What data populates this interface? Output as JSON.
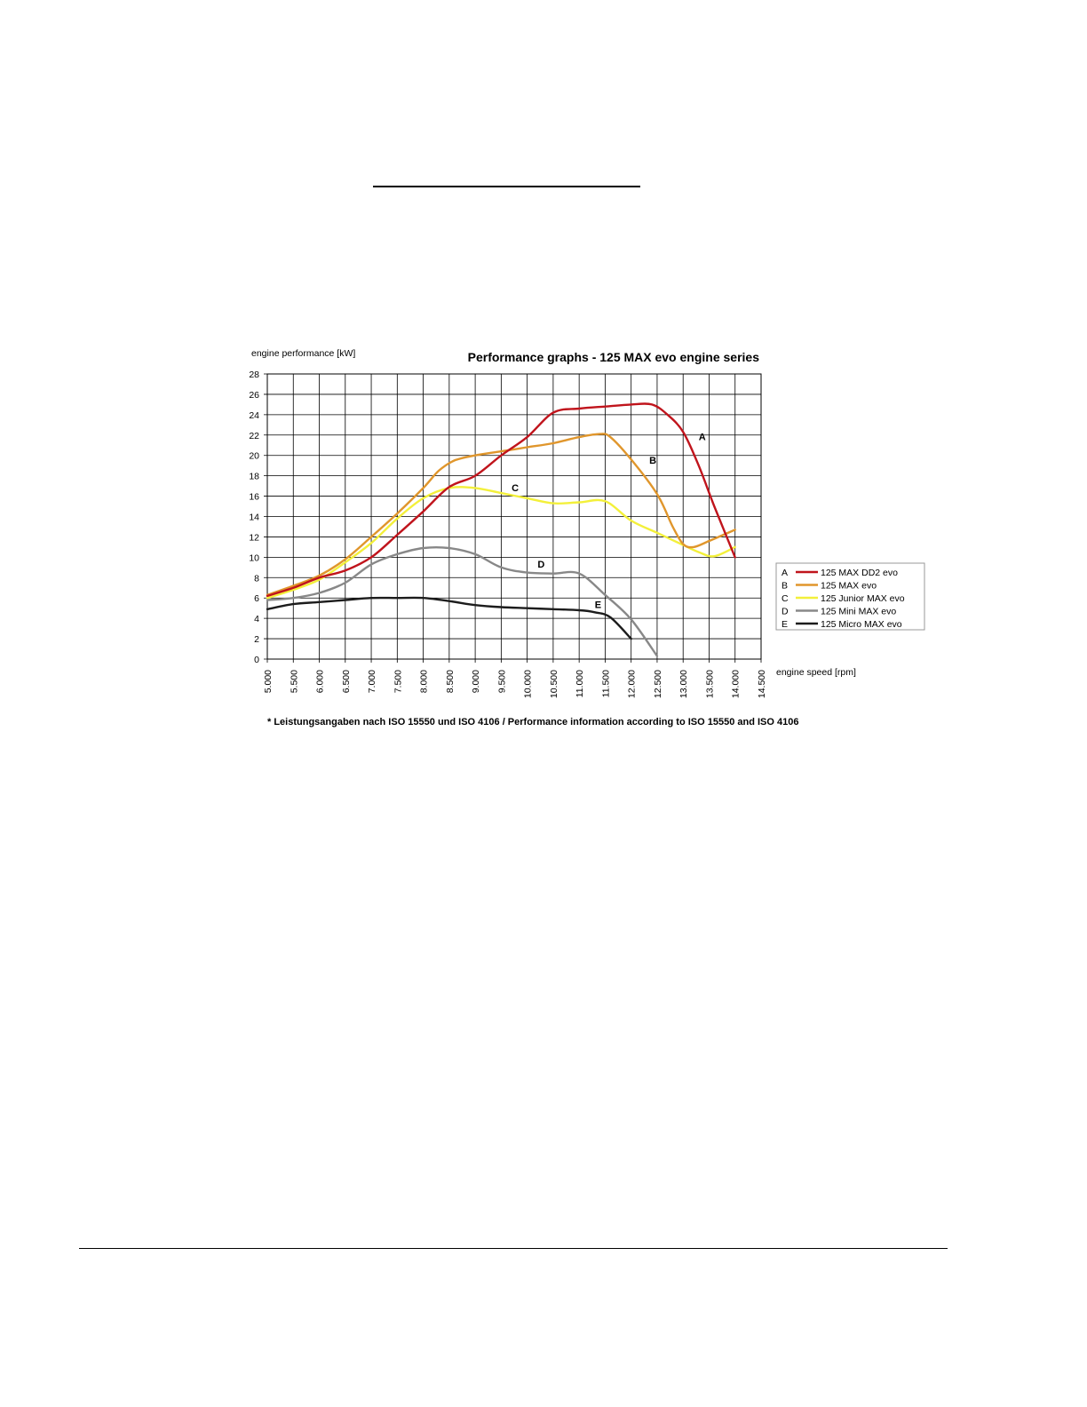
{
  "page": {
    "footnote": "* Leistungsangaben nach ISO 15550 und ISO 4106 / Performance information according to ISO 15550 and ISO 4106"
  },
  "chart_data": {
    "type": "line",
    "title": "Performance graphs - 125 MAX evo engine series",
    "ylabel": "engine performance [kW]",
    "xlabel": "engine speed [rpm]",
    "xlim": [
      5000,
      14500
    ],
    "ylim": [
      0,
      28
    ],
    "grid": true,
    "legend_position": "right",
    "x_ticks": [
      5000,
      5500,
      6000,
      6500,
      7000,
      7500,
      8000,
      8500,
      9000,
      9500,
      10000,
      10500,
      11000,
      11500,
      12000,
      12500,
      13000,
      13500,
      14000,
      14500
    ],
    "x_tick_labels": [
      "5.000",
      "5.500",
      "6.000",
      "6.500",
      "7.000",
      "7.500",
      "8.000",
      "8.500",
      "9.000",
      "9.500",
      "10.000",
      "10.500",
      "11.000",
      "11.500",
      "12.000",
      "12.500",
      "13.000",
      "13.500",
      "14.000",
      "14.500"
    ],
    "y_ticks": [
      0,
      2,
      4,
      6,
      8,
      10,
      12,
      14,
      16,
      18,
      20,
      22,
      24,
      26,
      28
    ],
    "y_tick_labels": [
      "0",
      "2",
      "4",
      "6",
      "8",
      "10",
      "12",
      "14",
      "16",
      "18",
      "20",
      "22",
      "24",
      "26",
      "28"
    ],
    "series": [
      {
        "letter": "A",
        "name": "125 MAX DD2 evo",
        "color": "#c0141c",
        "label_at": [
          13300,
          21.5
        ],
        "points": [
          [
            5000,
            6.2
          ],
          [
            5500,
            7.0
          ],
          [
            6000,
            8.0
          ],
          [
            6500,
            8.7
          ],
          [
            7000,
            10.0
          ],
          [
            7500,
            12.2
          ],
          [
            8000,
            14.5
          ],
          [
            8500,
            16.9
          ],
          [
            9000,
            18.0
          ],
          [
            9500,
            20.0
          ],
          [
            10000,
            21.8
          ],
          [
            10500,
            24.2
          ],
          [
            11000,
            24.6
          ],
          [
            11500,
            24.8
          ],
          [
            12000,
            25.0
          ],
          [
            12400,
            25.0
          ],
          [
            12700,
            24.0
          ],
          [
            13000,
            22.3
          ],
          [
            13300,
            19.0
          ],
          [
            13600,
            15.0
          ],
          [
            14000,
            10.0
          ]
        ]
      },
      {
        "letter": "B",
        "name": "125 MAX evo",
        "color": "#e0962c",
        "label_at": [
          12350,
          19.2
        ],
        "points": [
          [
            5000,
            6.3
          ],
          [
            5500,
            7.2
          ],
          [
            6000,
            8.2
          ],
          [
            6500,
            9.8
          ],
          [
            7000,
            12.0
          ],
          [
            7500,
            14.3
          ],
          [
            8000,
            16.8
          ],
          [
            8300,
            18.5
          ],
          [
            8600,
            19.5
          ],
          [
            9000,
            20.0
          ],
          [
            9500,
            20.4
          ],
          [
            10000,
            20.8
          ],
          [
            10500,
            21.2
          ],
          [
            11000,
            21.8
          ],
          [
            11400,
            22.1
          ],
          [
            11600,
            21.8
          ],
          [
            12000,
            19.6
          ],
          [
            12500,
            16.2
          ],
          [
            12800,
            13.0
          ],
          [
            13000,
            11.3
          ],
          [
            13200,
            11.0
          ],
          [
            13500,
            11.6
          ],
          [
            14000,
            12.7
          ]
        ]
      },
      {
        "letter": "C",
        "name": "125 Junior MAX evo",
        "color": "#f3f03a",
        "label_at": [
          9700,
          16.5
        ],
        "points": [
          [
            5000,
            6.0
          ],
          [
            5500,
            6.8
          ],
          [
            6000,
            7.8
          ],
          [
            6500,
            9.5
          ],
          [
            7000,
            11.4
          ],
          [
            7500,
            13.8
          ],
          [
            8000,
            15.8
          ],
          [
            8500,
            16.8
          ],
          [
            9000,
            16.8
          ],
          [
            9500,
            16.3
          ],
          [
            10000,
            15.8
          ],
          [
            10500,
            15.3
          ],
          [
            11000,
            15.4
          ],
          [
            11500,
            15.5
          ],
          [
            12000,
            13.6
          ],
          [
            12500,
            12.4
          ],
          [
            13000,
            11.2
          ],
          [
            13300,
            10.5
          ],
          [
            13600,
            10.1
          ],
          [
            14000,
            11.0
          ]
        ]
      },
      {
        "letter": "D",
        "name": "125 Mini MAX evo",
        "color": "#888888",
        "label_at": [
          10200,
          9.0
        ],
        "points": [
          [
            5000,
            5.8
          ],
          [
            5500,
            6.0
          ],
          [
            6000,
            6.5
          ],
          [
            6500,
            7.5
          ],
          [
            7000,
            9.3
          ],
          [
            7500,
            10.3
          ],
          [
            8000,
            10.9
          ],
          [
            8500,
            10.9
          ],
          [
            9000,
            10.3
          ],
          [
            9500,
            9.0
          ],
          [
            10000,
            8.5
          ],
          [
            10500,
            8.4
          ],
          [
            11000,
            8.4
          ],
          [
            11500,
            6.3
          ],
          [
            12000,
            3.9
          ],
          [
            12500,
            0.3
          ]
        ]
      },
      {
        "letter": "E",
        "name": "125 Micro MAX evo",
        "color": "#1c1c1c",
        "label_at": [
          11300,
          5.0
        ],
        "points": [
          [
            5000,
            4.9
          ],
          [
            5500,
            5.4
          ],
          [
            6000,
            5.6
          ],
          [
            6500,
            5.8
          ],
          [
            7000,
            6.0
          ],
          [
            7500,
            6.0
          ],
          [
            8000,
            6.0
          ],
          [
            8500,
            5.7
          ],
          [
            9000,
            5.3
          ],
          [
            9500,
            5.1
          ],
          [
            10000,
            5.0
          ],
          [
            10500,
            4.9
          ],
          [
            11000,
            4.8
          ],
          [
            11300,
            4.6
          ],
          [
            11600,
            4.1
          ],
          [
            12000,
            2.0
          ]
        ]
      }
    ]
  }
}
